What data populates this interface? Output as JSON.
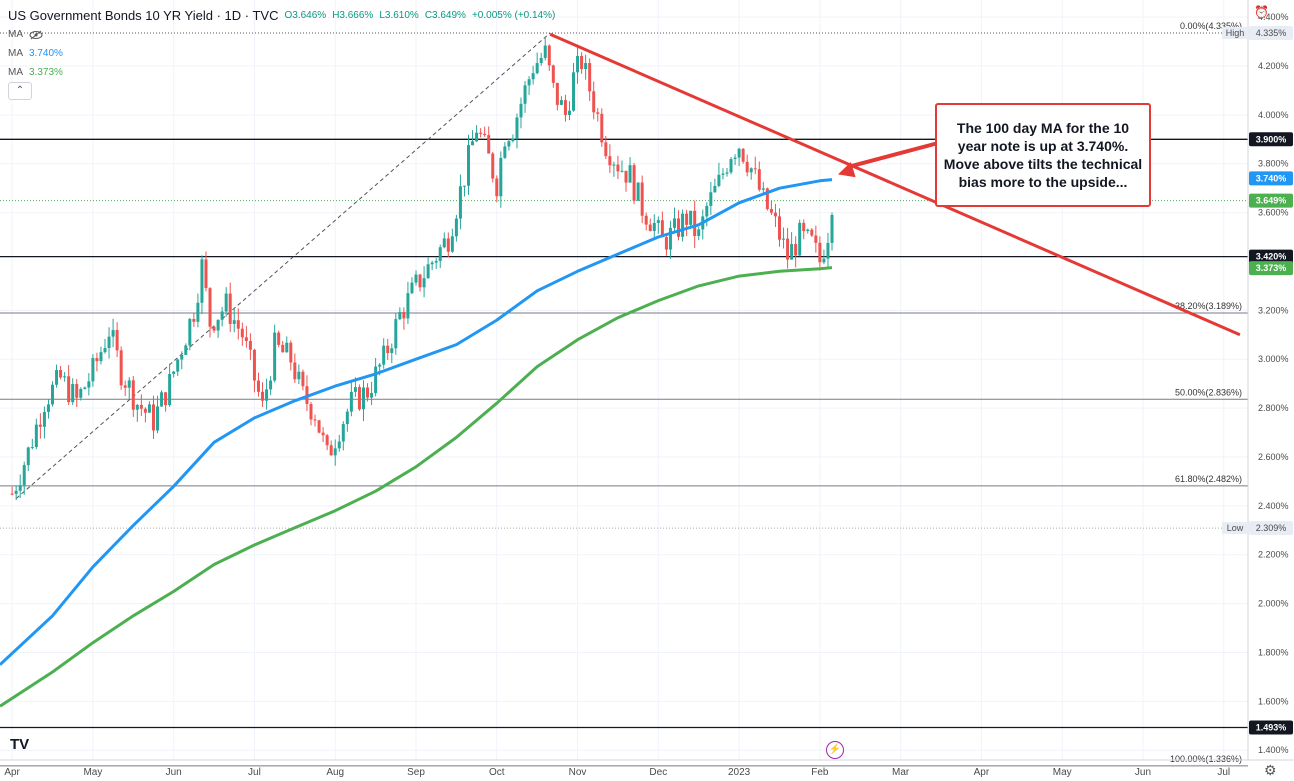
{
  "header": {
    "title": "US Government Bonds 10 YR Yield · 1D · TVC",
    "open": "O3.646%",
    "high": "H3.666%",
    "low": "L3.610%",
    "close": "C3.649%",
    "change": "+0.005% (+0.14%)",
    "ma_label": "MA",
    "ma1_value": "3.740%",
    "ma2_value": "3.373%",
    "collapse_glyph": "⌃",
    "alarm_icon": "alarm-plus-icon"
  },
  "annotation": {
    "text": "The 100 day MA for the 10 year note is up at 3.740%. Move above tilts the technical bias more to the upside..."
  },
  "footer": {
    "logo_text": "TV",
    "settings_icon": "gear-icon",
    "bolt_icon": "lightning-icon"
  },
  "chart_data": {
    "type": "candlestick",
    "title": "US Government Bonds 10 YR Yield",
    "ylim": [
      1.36,
      4.47
    ],
    "xlim_month_index": [
      -0.15,
      15.3
    ],
    "x_labels": [
      "Apr",
      "May",
      "Jun",
      "Jul",
      "Aug",
      "Sep",
      "Oct",
      "Nov",
      "Dec",
      "2023",
      "Feb",
      "Mar",
      "Apr",
      "May",
      "Jun",
      "Jul"
    ],
    "y_ticks": [
      "4.400%",
      "4.200%",
      "4.000%",
      "3.800%",
      "3.600%",
      "3.200%",
      "3.000%",
      "2.800%",
      "2.600%",
      "2.400%",
      "2.200%",
      "2.000%",
      "1.800%",
      "1.600%",
      "1.400%"
    ],
    "y_tick_values": [
      4.4,
      4.2,
      4.0,
      3.8,
      3.6,
      3.2,
      3.0,
      2.8,
      2.6,
      2.4,
      2.2,
      2.0,
      1.8,
      1.6,
      1.4
    ],
    "price_tags": [
      {
        "label": "4.335%",
        "value": 4.335,
        "kind": "high",
        "caption": "High",
        "color": "#e8edf5"
      },
      {
        "label": "3.900%",
        "value": 3.9,
        "kind": "level",
        "color": "#131722"
      },
      {
        "label": "3.740%",
        "value": 3.74,
        "kind": "ma100",
        "color": "#2196f3"
      },
      {
        "label": "3.649%",
        "value": 3.649,
        "kind": "last",
        "color": "#4caf50"
      },
      {
        "label": "3.420%",
        "value": 3.42,
        "kind": "level",
        "color": "#131722"
      },
      {
        "label": "3.373%",
        "value": 3.373,
        "kind": "ma200",
        "color": "#4caf50"
      },
      {
        "label": "2.309%",
        "value": 2.309,
        "kind": "low",
        "caption": "Low",
        "color": "#e8edf5"
      },
      {
        "label": "1.493%",
        "value": 1.493,
        "kind": "level",
        "color": "#131722"
      }
    ],
    "horizontal_levels": [
      3.9,
      3.42,
      1.493
    ],
    "fibonacci": [
      {
        "label": "0.00%(4.335%)",
        "value": 4.335
      },
      {
        "label": "38.20%(3.189%)",
        "value": 3.189
      },
      {
        "label": "50.00%(2.836%)",
        "value": 2.836
      },
      {
        "label": "61.80%(2.482%)",
        "value": 2.482
      },
      {
        "label": "100.00%(1.336%)",
        "value": 1.336
      }
    ],
    "fib_anchor_line": {
      "from": [
        0.05,
        2.43
      ],
      "to": [
        6.66,
        4.335
      ]
    },
    "trendline": {
      "from": [
        6.66,
        4.33
      ],
      "to": [
        15.2,
        3.1
      ],
      "color": "#e53935"
    },
    "arrow": {
      "from_box": true,
      "to": [
        10.15,
        3.74
      ],
      "color": "#e53935"
    },
    "ma100": {
      "color": "#2196f3",
      "points": [
        [
          -0.15,
          1.75
        ],
        [
          0.5,
          1.95
        ],
        [
          1.0,
          2.15
        ],
        [
          1.5,
          2.32
        ],
        [
          2.0,
          2.48
        ],
        [
          2.5,
          2.66
        ],
        [
          3.0,
          2.76
        ],
        [
          3.5,
          2.83
        ],
        [
          4.0,
          2.89
        ],
        [
          4.5,
          2.94
        ],
        [
          5.0,
          3.0
        ],
        [
          5.5,
          3.06
        ],
        [
          6.0,
          3.16
        ],
        [
          6.5,
          3.28
        ],
        [
          7.0,
          3.36
        ],
        [
          7.5,
          3.43
        ],
        [
          8.0,
          3.5
        ],
        [
          8.5,
          3.55
        ],
        [
          9.0,
          3.64
        ],
        [
          9.5,
          3.7
        ],
        [
          10.0,
          3.73
        ],
        [
          10.15,
          3.735
        ]
      ]
    },
    "ma200": {
      "color": "#4caf50",
      "points": [
        [
          -0.15,
          1.58
        ],
        [
          0.5,
          1.72
        ],
        [
          1.0,
          1.84
        ],
        [
          1.5,
          1.95
        ],
        [
          2.0,
          2.05
        ],
        [
          2.5,
          2.16
        ],
        [
          3.0,
          2.24
        ],
        [
          3.5,
          2.31
        ],
        [
          4.0,
          2.38
        ],
        [
          4.5,
          2.46
        ],
        [
          5.0,
          2.56
        ],
        [
          5.5,
          2.68
        ],
        [
          6.0,
          2.82
        ],
        [
          6.5,
          2.97
        ],
        [
          7.0,
          3.08
        ],
        [
          7.5,
          3.17
        ],
        [
          8.0,
          3.24
        ],
        [
          8.5,
          3.3
        ],
        [
          9.0,
          3.34
        ],
        [
          9.5,
          3.36
        ],
        [
          10.0,
          3.37
        ],
        [
          10.15,
          3.375
        ]
      ]
    },
    "candles_anchor": [
      [
        0.0,
        2.45
      ],
      [
        0.2,
        2.62
      ],
      [
        0.4,
        2.83
      ],
      [
        0.6,
        2.92
      ],
      [
        0.8,
        2.83
      ],
      [
        1.0,
        2.95
      ],
      [
        1.2,
        3.12
      ],
      [
        1.35,
        2.95
      ],
      [
        1.55,
        2.82
      ],
      [
        1.75,
        2.75
      ],
      [
        1.95,
        2.9
      ],
      [
        2.1,
        3.05
      ],
      [
        2.25,
        3.2
      ],
      [
        2.35,
        3.38
      ],
      [
        2.45,
        3.15
      ],
      [
        2.65,
        3.22
      ],
      [
        2.85,
        3.1
      ],
      [
        3.0,
        2.92
      ],
      [
        3.1,
        2.8
      ],
      [
        3.25,
        3.05
      ],
      [
        3.45,
        3.0
      ],
      [
        3.6,
        2.85
      ],
      [
        3.75,
        2.78
      ],
      [
        3.9,
        2.6
      ],
      [
        4.05,
        2.72
      ],
      [
        4.2,
        2.82
      ],
      [
        4.4,
        2.87
      ],
      [
        4.6,
        3.0
      ],
      [
        4.8,
        3.18
      ],
      [
        5.0,
        3.3
      ],
      [
        5.2,
        3.4
      ],
      [
        5.4,
        3.5
      ],
      [
        5.6,
        3.75
      ],
      [
        5.75,
        3.95
      ],
      [
        5.9,
        3.82
      ],
      [
        6.0,
        3.72
      ],
      [
        6.1,
        3.92
      ],
      [
        6.2,
        3.95
      ],
      [
        6.3,
        4.05
      ],
      [
        6.45,
        4.2
      ],
      [
        6.6,
        4.25
      ],
      [
        6.7,
        4.1
      ],
      [
        6.85,
        4.0
      ],
      [
        6.95,
        4.15
      ],
      [
        7.05,
        4.22
      ],
      [
        7.2,
        4.05
      ],
      [
        7.35,
        3.88
      ],
      [
        7.5,
        3.8
      ],
      [
        7.65,
        3.75
      ],
      [
        7.8,
        3.62
      ],
      [
        7.95,
        3.55
      ],
      [
        8.05,
        3.48
      ],
      [
        8.2,
        3.52
      ],
      [
        8.35,
        3.58
      ],
      [
        8.5,
        3.5
      ],
      [
        8.6,
        3.62
      ],
      [
        8.75,
        3.72
      ],
      [
        8.9,
        3.85
      ],
      [
        9.0,
        3.88
      ],
      [
        9.15,
        3.78
      ],
      [
        9.3,
        3.65
      ],
      [
        9.45,
        3.55
      ],
      [
        9.6,
        3.42
      ],
      [
        9.75,
        3.5
      ],
      [
        9.9,
        3.47
      ],
      [
        10.0,
        3.4
      ],
      [
        10.1,
        3.52
      ],
      [
        10.15,
        3.65
      ]
    ]
  }
}
